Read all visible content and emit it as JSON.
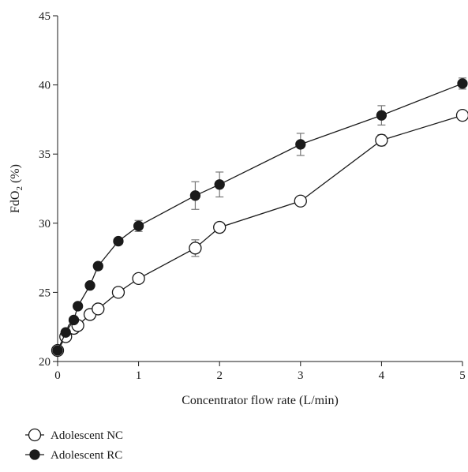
{
  "chart_data": {
    "type": "line",
    "xlabel": "Concentrator flow rate (L/min)",
    "ylabel": {
      "main": "FdO",
      "sub": "2",
      "unit": " (%)"
    },
    "xlim": [
      0,
      5
    ],
    "ylim": [
      20,
      45
    ],
    "x_ticks": [
      0,
      1,
      2,
      3,
      4,
      5
    ],
    "y_ticks": [
      20,
      25,
      30,
      35,
      40,
      45
    ],
    "legend_position": "bottom-left",
    "series": [
      {
        "name": "Adolescent NC",
        "marker": "open-circle",
        "color": "#1a1a1a",
        "points": [
          {
            "x": 0,
            "y": 20.8,
            "err": 0
          },
          {
            "x": 0.1,
            "y": 21.8,
            "err": 0
          },
          {
            "x": 0.2,
            "y": 22.4,
            "err": 0
          },
          {
            "x": 0.25,
            "y": 22.6,
            "err": 0
          },
          {
            "x": 0.4,
            "y": 23.4,
            "err": 0
          },
          {
            "x": 0.5,
            "y": 23.8,
            "err": 0
          },
          {
            "x": 0.75,
            "y": 25.0,
            "err": 0
          },
          {
            "x": 1,
            "y": 26.0,
            "err": 0
          },
          {
            "x": 1.7,
            "y": 28.2,
            "err": 0.6
          },
          {
            "x": 2,
            "y": 29.7,
            "err": 0
          },
          {
            "x": 3,
            "y": 31.6,
            "err": 0
          },
          {
            "x": 4,
            "y": 36.0,
            "err": 0.4
          },
          {
            "x": 5,
            "y": 37.8,
            "err": 0
          }
        ]
      },
      {
        "name": "Adolescent RC",
        "marker": "filled-circle",
        "color": "#1a1a1a",
        "points": [
          {
            "x": 0,
            "y": 20.8,
            "err": 0
          },
          {
            "x": 0.1,
            "y": 22.1,
            "err": 0
          },
          {
            "x": 0.2,
            "y": 23.0,
            "err": 0
          },
          {
            "x": 0.25,
            "y": 24.0,
            "err": 0
          },
          {
            "x": 0.4,
            "y": 25.5,
            "err": 0
          },
          {
            "x": 0.5,
            "y": 26.9,
            "err": 0
          },
          {
            "x": 0.75,
            "y": 28.7,
            "err": 0
          },
          {
            "x": 1,
            "y": 29.8,
            "err": 0.4
          },
          {
            "x": 1.7,
            "y": 32.0,
            "err": 1.0
          },
          {
            "x": 2,
            "y": 32.8,
            "err": 0.9
          },
          {
            "x": 3,
            "y": 35.7,
            "err": 0.8
          },
          {
            "x": 4,
            "y": 37.8,
            "err": 0.7
          },
          {
            "x": 5,
            "y": 40.1,
            "err": 0.4
          }
        ]
      }
    ]
  }
}
